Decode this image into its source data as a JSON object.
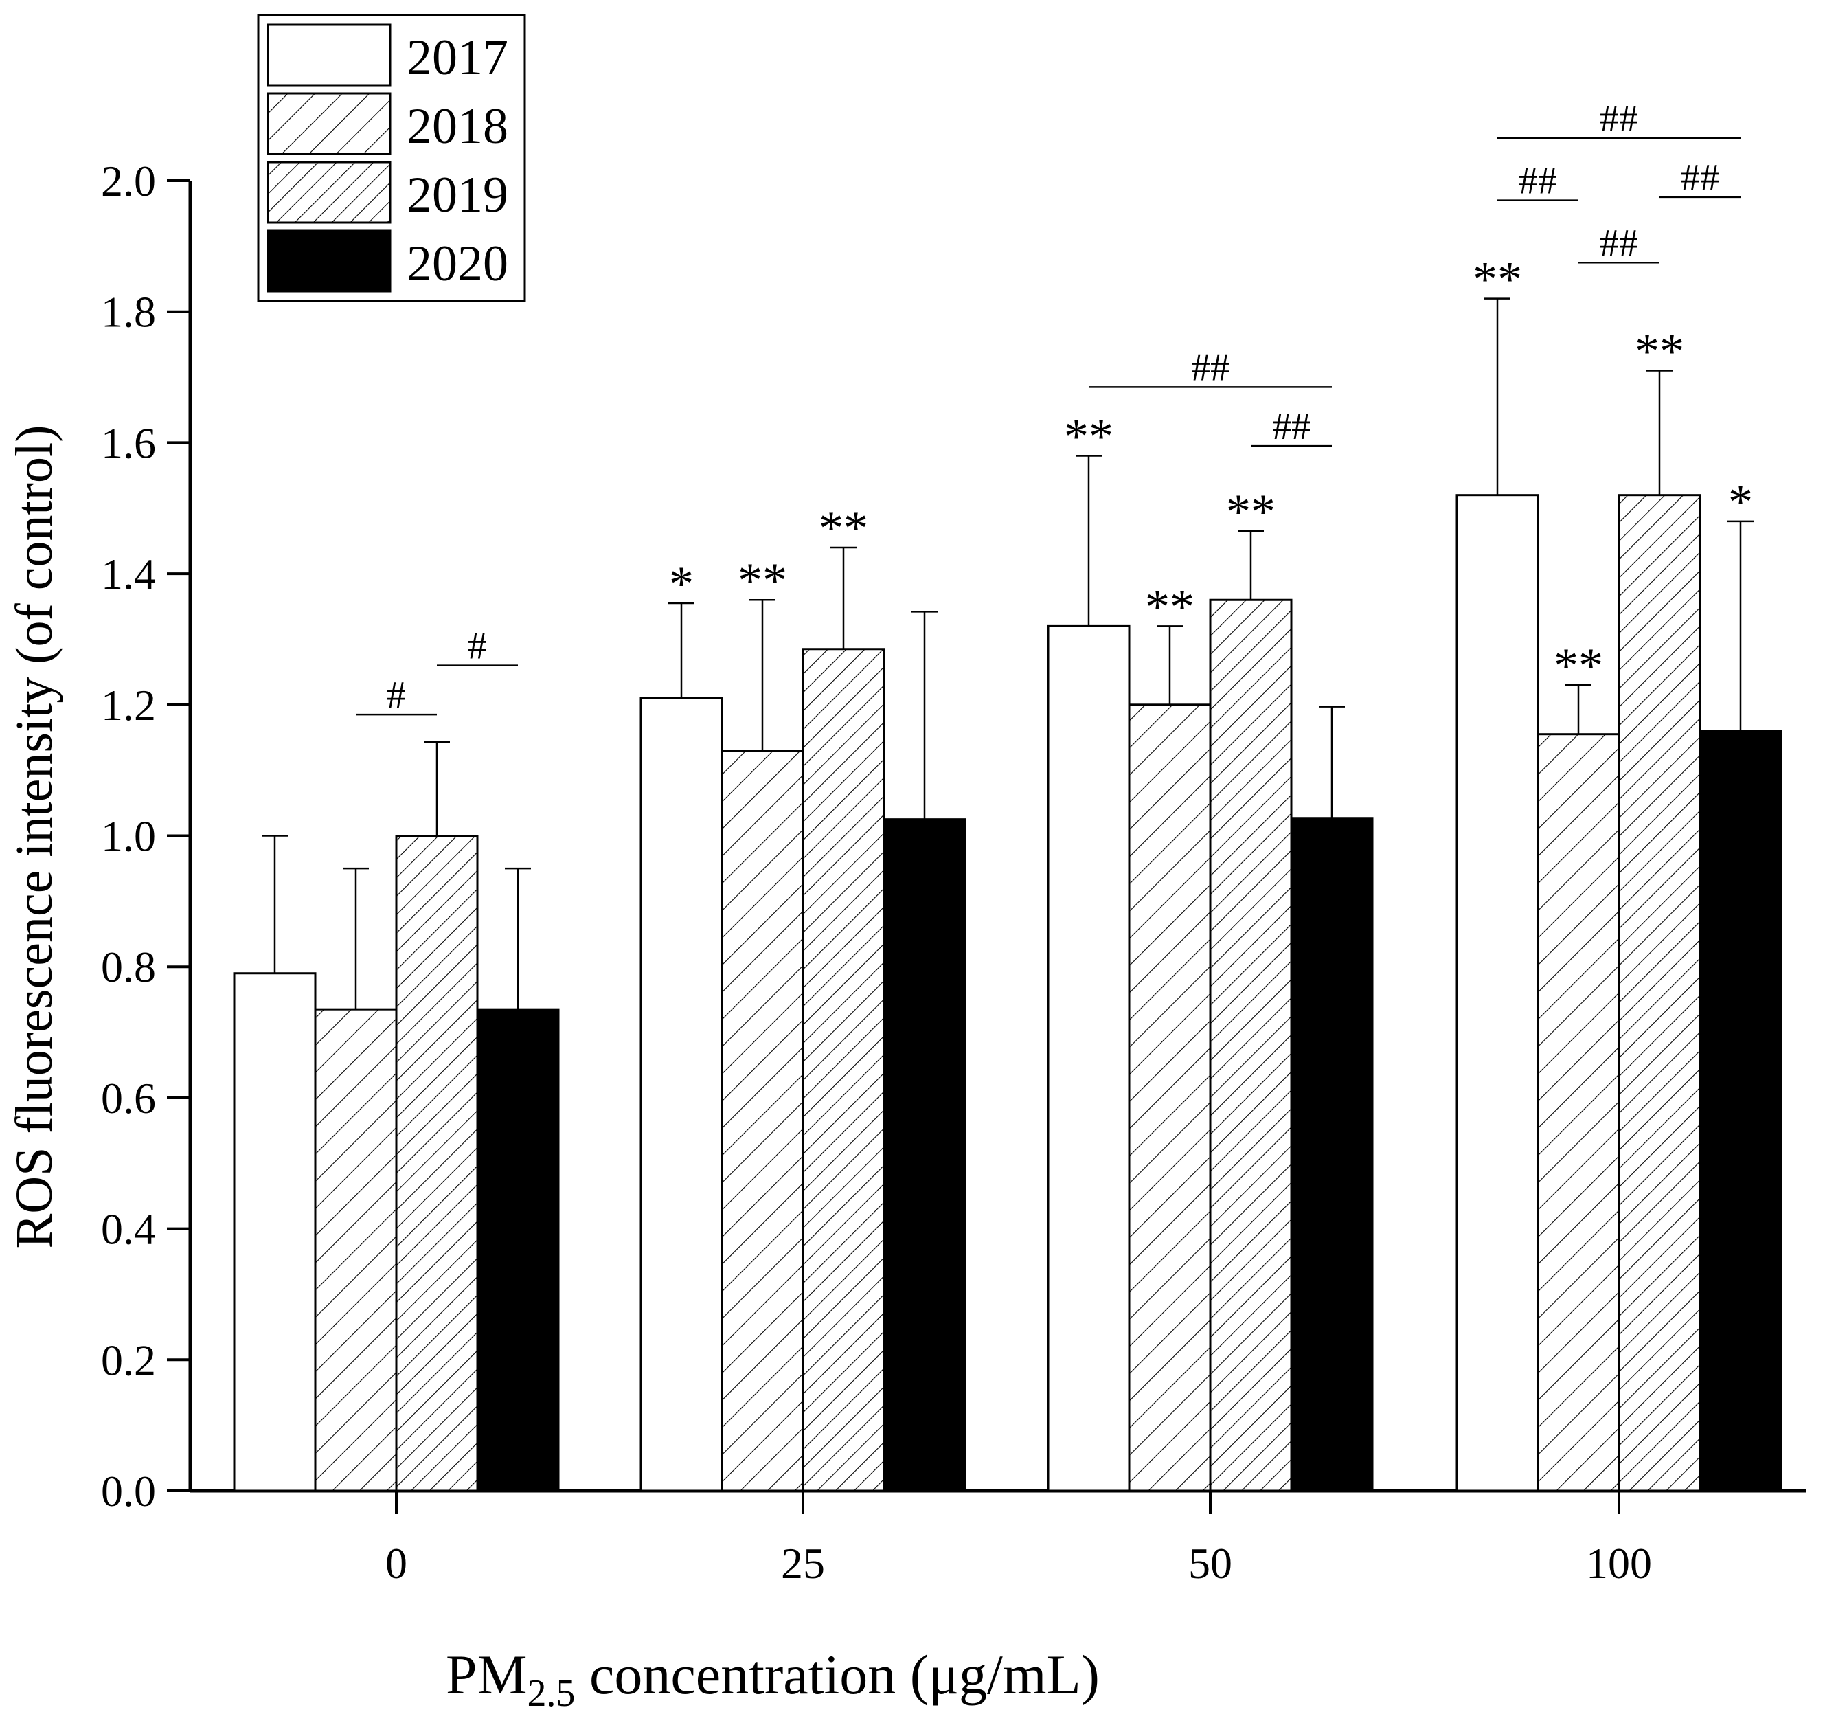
{
  "chart_data": {
    "type": "bar",
    "title": "",
    "xlabel_main": "PM",
    "xlabel_sub": "2.5",
    "xlabel_rest": " concentration (μg/mL)",
    "ylabel": "ROS fluorescence intensity (of control)",
    "categories": [
      "0",
      "25",
      "50",
      "100"
    ],
    "ylim": [
      0,
      2.0
    ],
    "yticks": [
      "0.0",
      "0.2",
      "0.4",
      "0.6",
      "0.8",
      "1.0",
      "1.2",
      "1.4",
      "1.6",
      "1.8",
      "2.0"
    ],
    "legend_position": "top-left",
    "series": [
      {
        "name": "2017",
        "fill": "white",
        "values": [
          0.79,
          1.21,
          1.32,
          1.52
        ],
        "errors": [
          0.21,
          0.145,
          0.26,
          0.3
        ],
        "stars": [
          "",
          "*",
          "**",
          "**"
        ]
      },
      {
        "name": "2018",
        "fill": "hatch-sparse",
        "values": [
          0.735,
          1.13,
          1.2,
          1.155
        ],
        "errors": [
          0.215,
          0.23,
          0.12,
          0.075
        ],
        "stars": [
          "",
          "**",
          "**",
          "**"
        ]
      },
      {
        "name": "2019",
        "fill": "hatch-dense",
        "values": [
          1.0,
          1.285,
          1.36,
          1.52
        ],
        "errors": [
          0.143,
          0.155,
          0.105,
          0.19
        ],
        "stars": [
          "",
          "**",
          "**",
          "**"
        ]
      },
      {
        "name": "2020",
        "fill": "black",
        "values": [
          0.735,
          1.025,
          1.027,
          1.16
        ],
        "errors": [
          0.215,
          0.317,
          0.17,
          0.32
        ],
        "stars": [
          "",
          "",
          "",
          "*"
        ]
      }
    ],
    "comparisons": [
      {
        "category": 0,
        "from": 1,
        "to": 2,
        "y": 1.185,
        "label": "#"
      },
      {
        "category": 0,
        "from": 2,
        "to": 3,
        "y": 1.26,
        "label": "#"
      },
      {
        "category": 2,
        "from": 0,
        "to": 3,
        "y": 1.685,
        "label": "##"
      },
      {
        "category": 2,
        "from": 2,
        "to": 3,
        "y": 1.595,
        "label": "##"
      },
      {
        "category": 3,
        "from": 0,
        "to": 3,
        "y": 2.065,
        "label": "##"
      },
      {
        "category": 3,
        "from": 0,
        "to": 1,
        "y": 1.97,
        "label": "##"
      },
      {
        "category": 3,
        "from": 2,
        "to": 3,
        "y": 1.975,
        "label": "##"
      },
      {
        "category": 3,
        "from": 1,
        "to": 2,
        "y": 1.875,
        "label": "##"
      }
    ],
    "colors": {
      "axis": "#000000",
      "white_bar": "#ffffff",
      "black_bar": "#000000"
    }
  }
}
